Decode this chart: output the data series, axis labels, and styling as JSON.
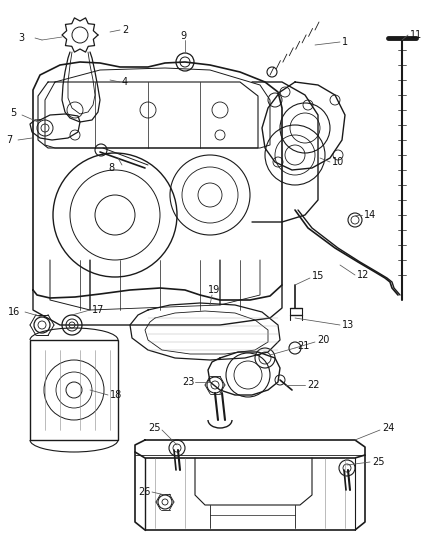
{
  "background_color": "#ffffff",
  "line_color": "#1a1a1a",
  "figsize": [
    4.38,
    5.33
  ],
  "dpi": 100,
  "label_fontsize": 7,
  "line_width": 0.8
}
